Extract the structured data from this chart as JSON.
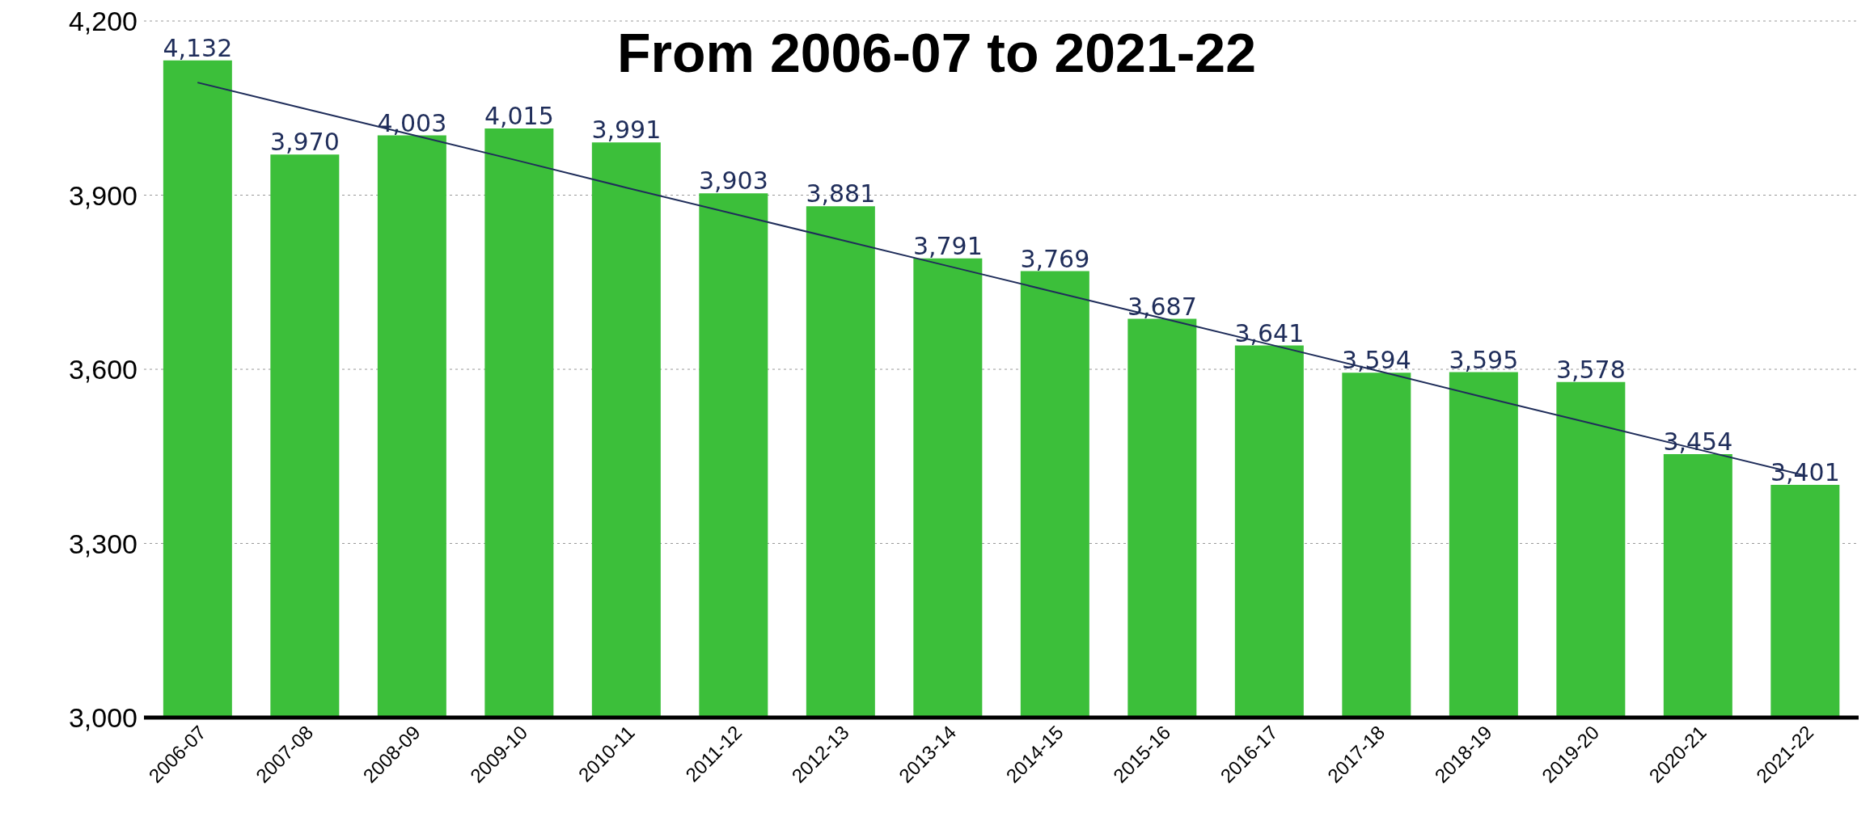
{
  "chart_data": {
    "type": "bar",
    "title": "From 2006-07 to 2021-22",
    "categories": [
      "2006-07",
      "2007-08",
      "2008-09",
      "2009-10",
      "2010-11",
      "2011-12",
      "2012-13",
      "2013-14",
      "2014-15",
      "2015-16",
      "2016-17",
      "2017-18",
      "2018-19",
      "2019-20",
      "2020-21",
      "2021-22"
    ],
    "series": [
      {
        "color": "#3cbf3a",
        "values": [
          4132,
          3970,
          4003,
          4015,
          3991,
          3903,
          3881,
          3791,
          3769,
          3687,
          3641,
          3594,
          3595,
          3578,
          3454,
          3401
        ],
        "value_labels": [
          "4,132",
          "3,970",
          "4,003",
          "4,015",
          "3,991",
          "3,903",
          "3,881",
          "3,791",
          "3,769",
          "3,687",
          "3,641",
          "3,594",
          "3,595",
          "3,578",
          "3,454",
          "3,401"
        ]
      },
      {
        "type": "line",
        "color": "#1f2d5a",
        "values": [
          4094,
          4049,
          4004,
          3959,
          3913,
          3868,
          3823,
          3778,
          3733,
          3688,
          3643,
          3598,
          3552,
          3507,
          3462,
          3417
        ]
      }
    ],
    "ylim": [
      3000,
      4200
    ],
    "yticks": [
      {
        "value": 3000,
        "label": "3,000"
      },
      {
        "value": 3300,
        "label": "3,300"
      },
      {
        "value": 3600,
        "label": "3,600"
      },
      {
        "value": 3900,
        "label": "3,900"
      },
      {
        "value": 4200,
        "label": "4,200"
      }
    ],
    "grid": "y"
  }
}
